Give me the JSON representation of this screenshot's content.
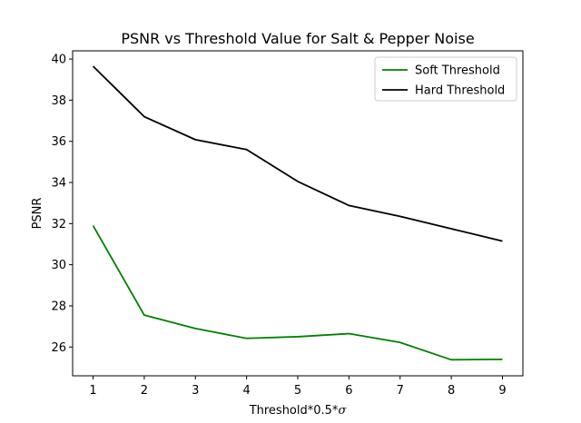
{
  "chart_data": {
    "type": "line",
    "title": "PSNR vs Threshold Value for Salt & Pepper Noise",
    "xlabel_prefix": "Threshold*0.5*",
    "xlabel_symbol": "σ",
    "ylabel": "PSNR",
    "x": [
      1,
      2,
      3,
      4,
      5,
      6,
      7,
      8,
      9
    ],
    "xlim": [
      0.6,
      9.4
    ],
    "ylim": [
      24.6,
      40.4
    ],
    "xticks": [
      1,
      2,
      3,
      4,
      5,
      6,
      7,
      8,
      9
    ],
    "yticks": [
      26,
      28,
      30,
      32,
      34,
      36,
      38,
      40
    ],
    "grid": false,
    "legend_position": "top-right",
    "series": [
      {
        "name": "Soft Threshold",
        "color": "#008000",
        "values": [
          31.9,
          27.55,
          26.9,
          26.42,
          26.5,
          26.65,
          26.22,
          25.38,
          25.4
        ]
      },
      {
        "name": "Hard Threshold",
        "color": "#000000",
        "values": [
          39.65,
          37.2,
          36.08,
          35.6,
          34.05,
          32.88,
          32.35,
          31.75,
          31.15
        ]
      }
    ]
  }
}
